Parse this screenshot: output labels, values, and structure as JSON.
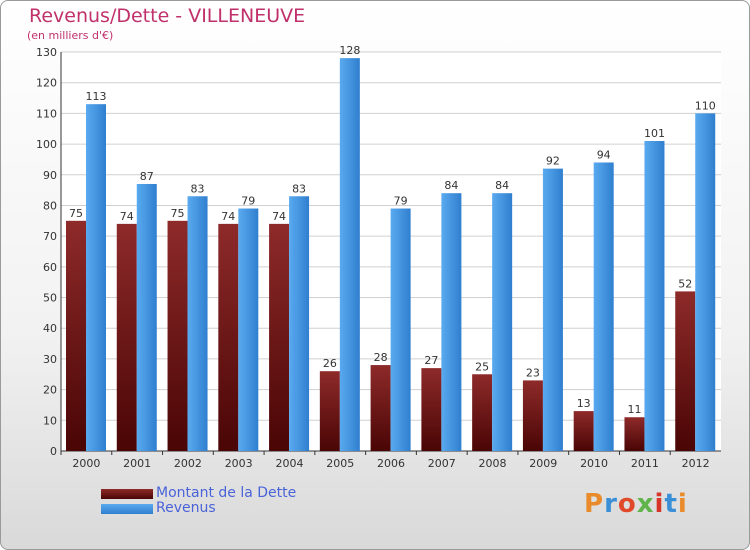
{
  "page": {
    "title": "Revenus/Dette - VILLENEUVE",
    "subtitle": "(en milliers d'€)",
    "logo_text": "Proxiti"
  },
  "chart_data": {
    "type": "bar",
    "title": "Revenus/Dette - VILLENEUVE",
    "ylabel": "(en milliers d'€)",
    "xlabel": "",
    "categories": [
      "2000",
      "2001",
      "2002",
      "2003",
      "2004",
      "2005",
      "2006",
      "2007",
      "2008",
      "2009",
      "2010",
      "2011",
      "2012"
    ],
    "series": [
      {
        "name": "Montant de la Dette",
        "color": "#7a1c1c",
        "values": [
          75,
          74,
          75,
          74,
          74,
          26,
          28,
          27,
          25,
          23,
          13,
          11,
          52
        ]
      },
      {
        "name": "Revenus",
        "color": "#3a8fd9",
        "values": [
          113,
          87,
          83,
          79,
          83,
          128,
          79,
          84,
          84,
          92,
          94,
          101,
          110
        ]
      }
    ],
    "ylim": [
      0,
      130
    ],
    "yticks": [
      0,
      10,
      20,
      30,
      40,
      50,
      60,
      70,
      80,
      90,
      100,
      110,
      120,
      130
    ],
    "grid": true,
    "legend_position": "bottom-left"
  }
}
